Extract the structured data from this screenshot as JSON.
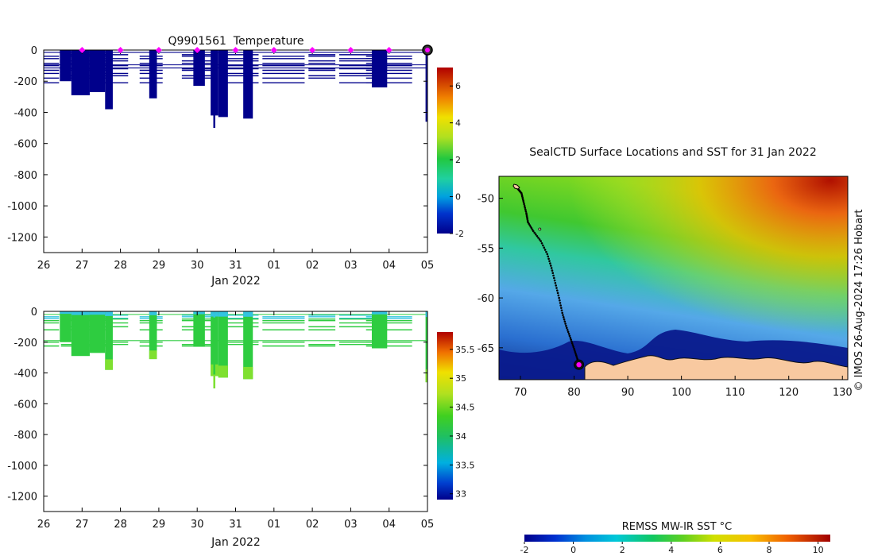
{
  "colors": {
    "cold_profile": "#00008b",
    "salinity_green": "#2ecc40",
    "salinity_light": "#7fe030",
    "salinity_cyan": "#33c4e0",
    "marker_magenta": "#ff00ff",
    "land": "#f8c9a0"
  },
  "chart_data": [
    {
      "type": "heatmap",
      "name": "temperature_section",
      "title": "Q9901561  Temperature",
      "xlabel": "Jan 2022",
      "ylabel": "",
      "x_tick_labels": [
        "26",
        "27",
        "28",
        "29",
        "30",
        "31",
        "01",
        "02",
        "03",
        "04",
        "05"
      ],
      "x_range_days": [
        0,
        10
      ],
      "ylim": [
        -1300,
        0
      ],
      "y_ticks": [
        0,
        -200,
        -400,
        -600,
        -800,
        -1000,
        -1200
      ],
      "y_tick_labels": [
        "0",
        "-200",
        "-400",
        "-600",
        "-800",
        "-1000",
        "-1200"
      ],
      "surface_markers_day": [
        1,
        2,
        3,
        4,
        5,
        6,
        7,
        8,
        9
      ],
      "last_position_day": 10,
      "colorbar": {
        "min": -2,
        "max": 7,
        "ticks": [
          -2,
          0,
          2,
          4,
          6
        ],
        "tick_labels": [
          "-2",
          "0",
          "2",
          "4",
          "6"
        ]
      },
      "profiles": [
        {
          "day_start": 0.42,
          "day_end": 0.72,
          "max_depth": 200
        },
        {
          "day_start": 0.72,
          "day_end": 1.2,
          "max_depth": 290
        },
        {
          "day_start": 1.2,
          "day_end": 1.6,
          "max_depth": 270
        },
        {
          "day_start": 1.6,
          "day_end": 1.8,
          "max_depth": 380
        },
        {
          "day_start": 2.75,
          "day_end": 2.95,
          "max_depth": 310
        },
        {
          "day_start": 3.9,
          "day_end": 4.2,
          "max_depth": 230
        },
        {
          "day_start": 4.35,
          "day_end": 4.55,
          "max_depth": 420
        },
        {
          "day_start": 4.55,
          "day_end": 4.8,
          "max_depth": 430
        },
        {
          "day_start": 4.42,
          "day_end": 4.47,
          "max_depth": 500
        },
        {
          "day_start": 5.2,
          "day_end": 5.45,
          "max_depth": 440
        },
        {
          "day_start": 8.55,
          "day_end": 8.95,
          "max_depth": 240
        },
        {
          "day_start": 9.95,
          "day_end": 10.05,
          "max_depth": 460
        }
      ]
    },
    {
      "type": "heatmap",
      "name": "salinity_section",
      "title": "",
      "xlabel": "Jan 2022",
      "ylabel": "",
      "x_tick_labels": [
        "26",
        "27",
        "28",
        "29",
        "30",
        "31",
        "01",
        "02",
        "03",
        "04",
        "05"
      ],
      "x_range_days": [
        0,
        10
      ],
      "ylim": [
        -1300,
        0
      ],
      "y_ticks": [
        0,
        -200,
        -400,
        -600,
        -800,
        -1000,
        -1200
      ],
      "y_tick_labels": [
        "0",
        "-200",
        "-400",
        "-600",
        "-800",
        "-1000",
        "-1200"
      ],
      "colorbar": {
        "min": 32.9,
        "max": 35.8,
        "ticks": [
          33,
          33.5,
          34,
          34.5,
          35,
          35.5
        ],
        "tick_labels": [
          "33",
          "33.5",
          "34",
          "34.5",
          "35",
          "35.5"
        ]
      },
      "profiles": [
        {
          "day_start": 0.42,
          "day_end": 0.72,
          "max_depth": 200
        },
        {
          "day_start": 0.72,
          "day_end": 1.2,
          "max_depth": 290
        },
        {
          "day_start": 1.2,
          "day_end": 1.6,
          "max_depth": 270
        },
        {
          "day_start": 1.6,
          "day_end": 1.8,
          "max_depth": 380
        },
        {
          "day_start": 2.75,
          "day_end": 2.95,
          "max_depth": 310
        },
        {
          "day_start": 3.9,
          "day_end": 4.2,
          "max_depth": 230
        },
        {
          "day_start": 4.35,
          "day_end": 4.55,
          "max_depth": 420
        },
        {
          "day_start": 4.55,
          "day_end": 4.8,
          "max_depth": 430
        },
        {
          "day_start": 4.42,
          "day_end": 4.47,
          "max_depth": 500
        },
        {
          "day_start": 5.2,
          "day_end": 5.45,
          "max_depth": 440
        },
        {
          "day_start": 8.55,
          "day_end": 8.95,
          "max_depth": 240
        },
        {
          "day_start": 9.95,
          "day_end": 10.05,
          "max_depth": 460
        }
      ]
    },
    {
      "type": "heatmap",
      "name": "sst_map",
      "title": "SealCTD Surface Locations and SST for 31 Jan 2022",
      "xlabel": "",
      "ylabel": "",
      "x_ticks": [
        70,
        80,
        90,
        100,
        110,
        120,
        130
      ],
      "x_tick_labels": [
        "70",
        "80",
        "90",
        "100",
        "110",
        "120",
        "130"
      ],
      "xlim": [
        66,
        131
      ],
      "y_ticks": [
        -50,
        -55,
        -60,
        -65
      ],
      "y_tick_labels": [
        "-50",
        "-55",
        "-60",
        "-65"
      ],
      "ylim": [
        -68.2,
        -47.8
      ],
      "colorbar": {
        "label": "REMSS MW-IR SST °C",
        "min": -2,
        "max": 10.5,
        "ticks": [
          -2,
          0,
          2,
          4,
          6,
          8,
          10
        ],
        "tick_labels": [
          "-2",
          "0",
          "2",
          "4",
          "6",
          "8",
          "10"
        ]
      },
      "track": [
        {
          "lon": 69.0,
          "lat": -48.7
        },
        {
          "lon": 69.6,
          "lat": -49.1
        },
        {
          "lon": 70.2,
          "lat": -49.5
        },
        {
          "lon": 70.6,
          "lat": -50.4
        },
        {
          "lon": 71.1,
          "lat": -51.5
        },
        {
          "lon": 71.4,
          "lat": -52.4
        },
        {
          "lon": 72.4,
          "lat": -53.3
        },
        {
          "lon": 73.8,
          "lat": -54.3
        },
        {
          "lon": 75.0,
          "lat": -55.6
        },
        {
          "lon": 75.8,
          "lat": -57.0
        },
        {
          "lon": 76.5,
          "lat": -58.5
        },
        {
          "lon": 77.2,
          "lat": -60.0
        },
        {
          "lon": 77.8,
          "lat": -61.5
        },
        {
          "lon": 78.5,
          "lat": -62.8
        },
        {
          "lon": 79.3,
          "lat": -64.0
        },
        {
          "lon": 80.0,
          "lat": -65.1
        },
        {
          "lon": 80.6,
          "lat": -66.1
        },
        {
          "lon": 80.9,
          "lat": -66.7
        }
      ],
      "last_position": {
        "lon": 80.9,
        "lat": -66.7
      }
    }
  ],
  "credit": "© IMOS 26-Aug-2024 17:26 Hobart"
}
